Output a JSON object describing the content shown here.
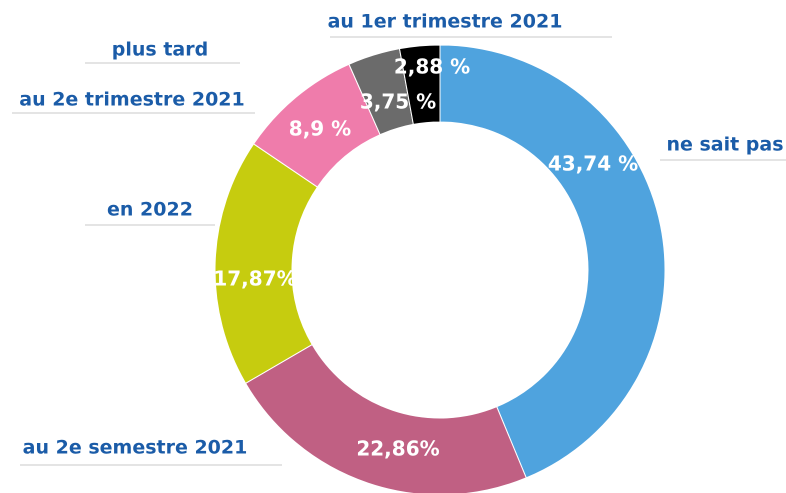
{
  "chart_data": {
    "type": "donut",
    "categories": [
      "ne sait pas",
      "au 2e semestre 2021",
      "en 2022",
      "au 2e trimestre 2021",
      "plus tard",
      "au 1er trimestre 2021"
    ],
    "values": [
      43.74,
      22.86,
      17.87,
      8.9,
      3.75,
      2.88
    ],
    "value_labels": [
      "43,74 %",
      "22,86%",
      "17,87%",
      "8,9 %",
      "3,75 %",
      "2,88 %"
    ],
    "colors": [
      "#4fa3de",
      "#c06083",
      "#c6cc0f",
      "#ef7cab",
      "#6b6b6b",
      "#000000"
    ]
  }
}
